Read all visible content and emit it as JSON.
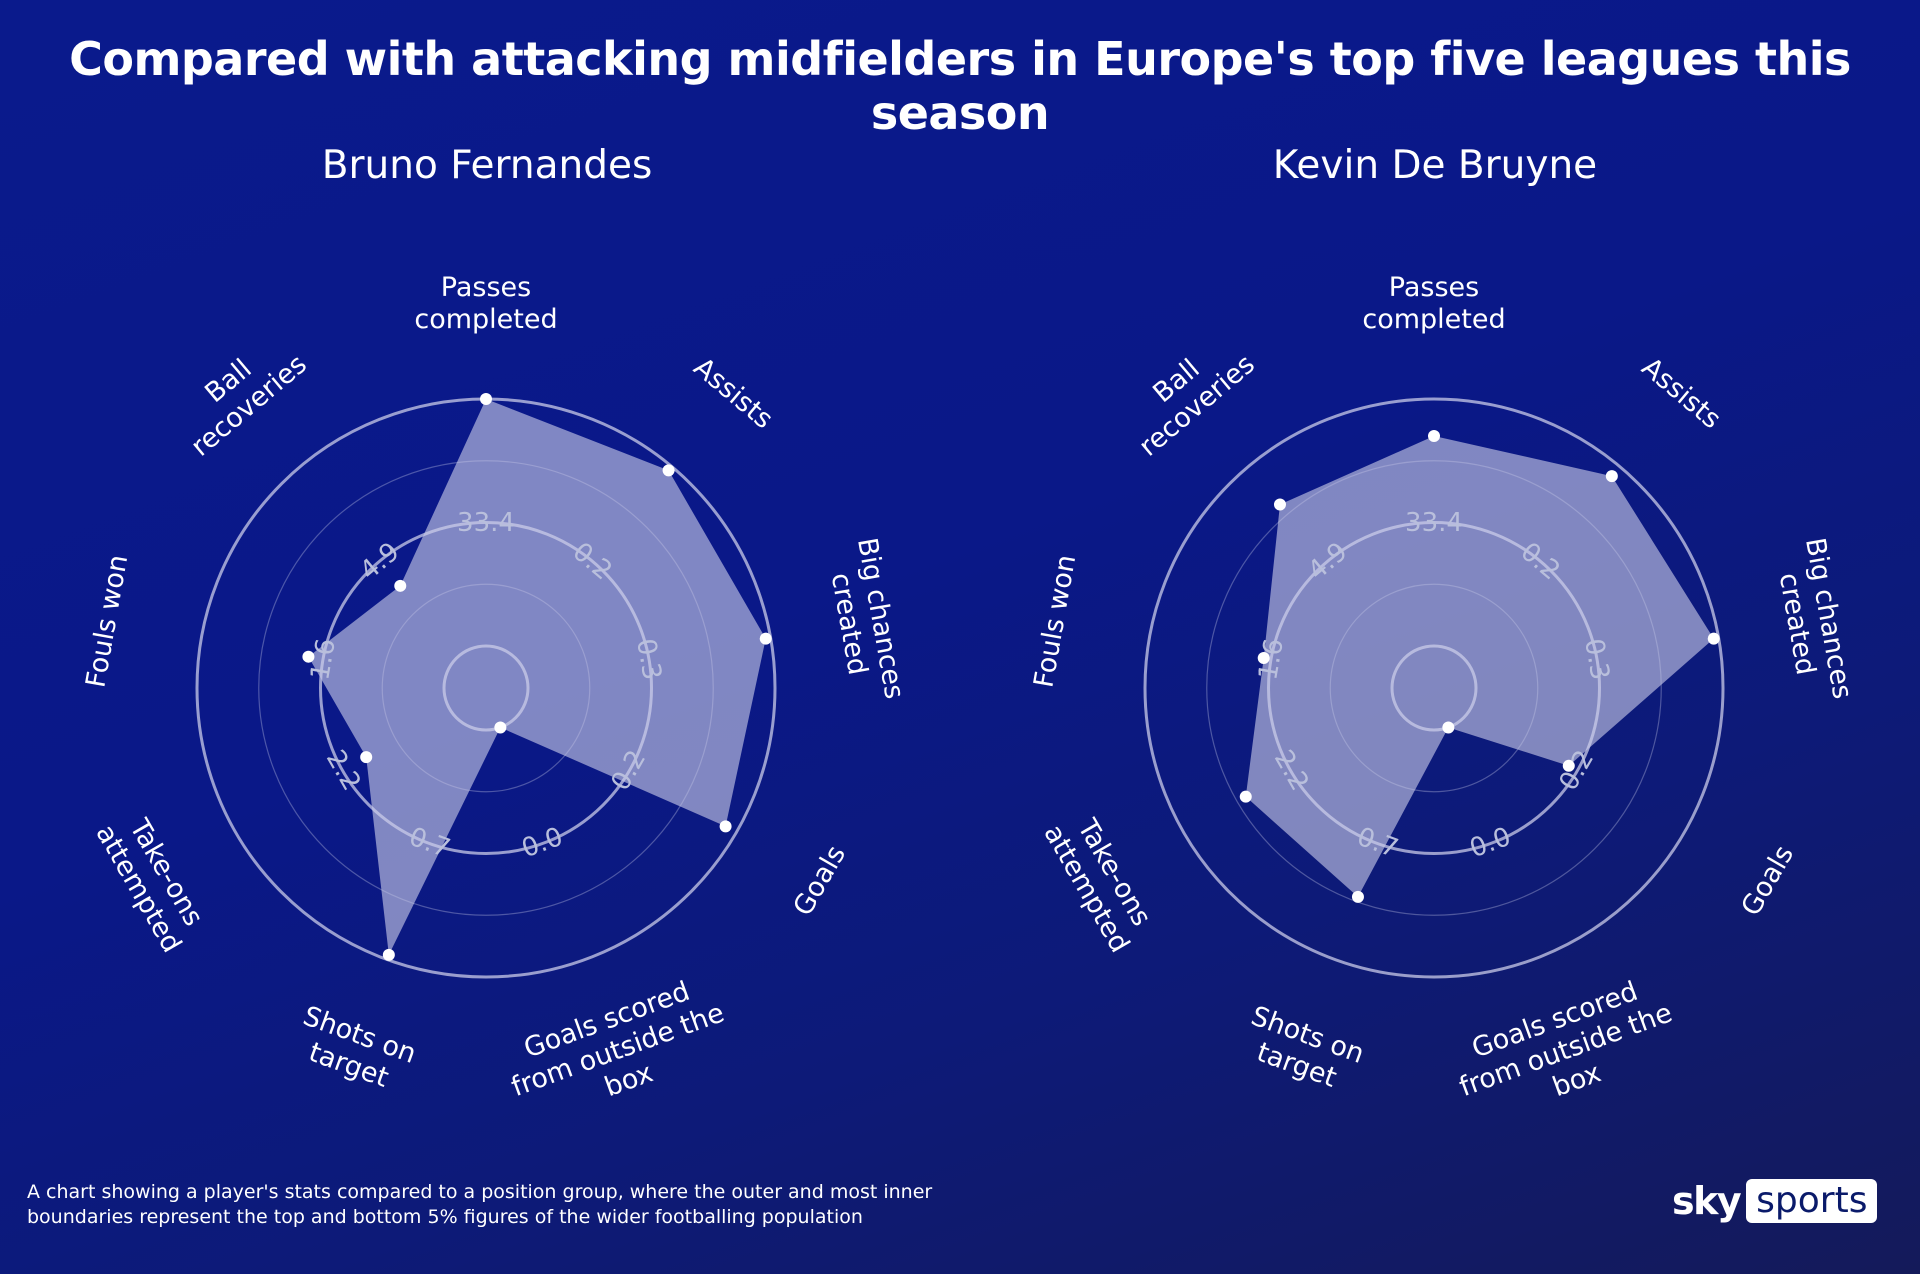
{
  "title": "Compared with attacking midfielders in Europe's top five leagues this season",
  "footnote_line1": "A chart showing a player's stats compared to a position group, where the outer and most inner",
  "footnote_line2": "boundaries represent the top and bottom 5% figures of the wider footballing population",
  "logo": {
    "sky": "sky",
    "sports": "sports"
  },
  "colors": {
    "background": "#0a1a8c",
    "polygon": "#c9cbe8",
    "ring": "#c9cbe8"
  },
  "chart_data": [
    {
      "type": "radar",
      "title": "Bruno Fernandes",
      "axes": [
        {
          "label": [
            "Passes",
            "completed"
          ],
          "tick": "33.4"
        },
        {
          "label": [
            "Assists"
          ],
          "tick": "0.2"
        },
        {
          "label": [
            "Big chances",
            "created"
          ],
          "tick": "0.3"
        },
        {
          "label": [
            "Goals"
          ],
          "tick": "0.2"
        },
        {
          "label": [
            "Goals scored",
            "from outside the",
            "box"
          ],
          "tick": "0.0"
        },
        {
          "label": [
            "Shots on",
            "target"
          ],
          "tick": "0.7"
        },
        {
          "label": [
            "Take-ons",
            "attempted"
          ],
          "tick": "2.2"
        },
        {
          "label": [
            "Fouls won"
          ],
          "tick": "1.6"
        },
        {
          "label": [
            "Ball",
            "recoveries"
          ],
          "tick": "4.9"
        }
      ],
      "values_normalized": [
        1.0,
        0.98,
        0.98,
        0.95,
        0.0,
        0.98,
        0.39,
        0.56,
        0.37
      ],
      "rings": [
        0,
        0.5,
        1.0
      ]
    },
    {
      "type": "radar",
      "title": "Kevin De Bruyne",
      "axes": [
        {
          "label": [
            "Passes",
            "completed"
          ],
          "tick": "33.4"
        },
        {
          "label": [
            "Assists"
          ],
          "tick": "0.2"
        },
        {
          "label": [
            "Big chances",
            "created"
          ],
          "tick": "0.3"
        },
        {
          "label": [
            "Goals"
          ],
          "tick": "0.2"
        },
        {
          "label": [
            "Goals scored",
            "from outside the",
            "box"
          ],
          "tick": "0.0"
        },
        {
          "label": [
            "Shots on",
            "target"
          ],
          "tick": "0.7"
        },
        {
          "label": [
            "Take-ons",
            "attempted"
          ],
          "tick": "2.2"
        },
        {
          "label": [
            "Fouls won"
          ],
          "tick": "1.6"
        },
        {
          "label": [
            "Ball",
            "recoveries"
          ],
          "tick": "4.9"
        }
      ],
      "values_normalized": [
        0.85,
        0.95,
        0.98,
        0.46,
        0.0,
        0.73,
        0.71,
        0.53,
        0.8
      ],
      "rings": [
        0,
        0.5,
        1.0
      ]
    }
  ]
}
